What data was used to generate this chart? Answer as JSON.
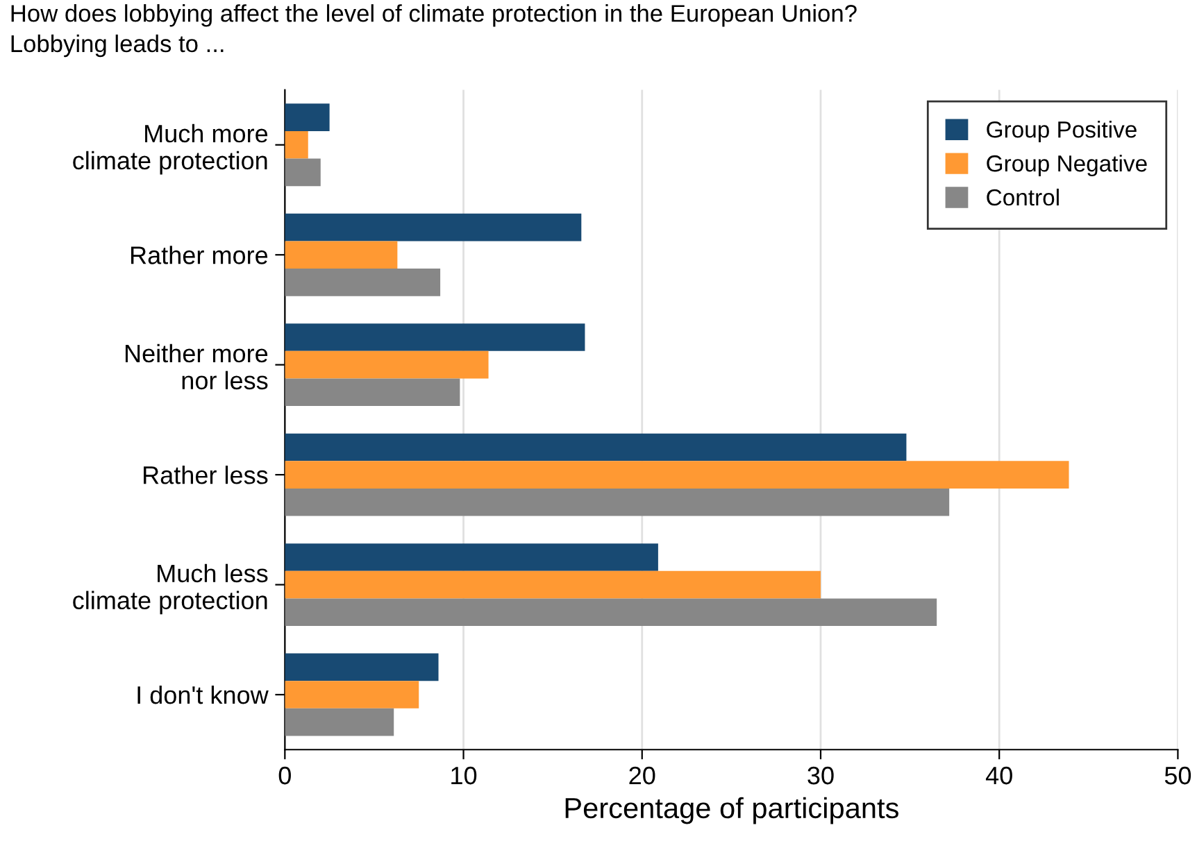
{
  "chart_data": {
    "type": "bar",
    "orientation": "horizontal",
    "title": "How does lobbying affect the level of climate protection in the European Union?\nLobbying leads to ...",
    "xlabel": "Percentage of participants",
    "categories": [
      "Much more\nclimate protection",
      "Rather more",
      "Neither more\nnor less",
      "Rather less",
      "Much less\nclimate protection",
      "I don't know"
    ],
    "series": [
      {
        "name": "Group Positive",
        "color": "#184a73",
        "values": [
          2.5,
          16.6,
          16.8,
          34.8,
          20.9,
          8.6
        ]
      },
      {
        "name": "Group Negative",
        "color": "#ff9933",
        "values": [
          1.3,
          6.3,
          11.4,
          43.9,
          30.0,
          7.5
        ]
      },
      {
        "name": "Control",
        "color": "#878787",
        "values": [
          2.0,
          8.7,
          9.8,
          37.2,
          36.5,
          6.1
        ]
      }
    ],
    "xlim": [
      0,
      50
    ],
    "xticks": [
      0,
      10,
      20,
      30,
      40,
      50
    ],
    "grid": "x",
    "legend": "top right"
  }
}
